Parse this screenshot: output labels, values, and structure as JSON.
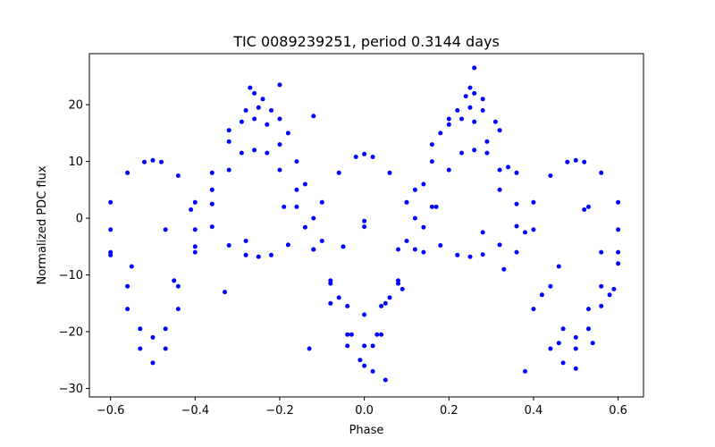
{
  "chart_data": {
    "type": "scatter",
    "title": "TIC 0089239251, period 0.3144 days",
    "xlabel": "Phase",
    "ylabel": "Normalized PDC flux",
    "xlim": [
      -0.65,
      0.66
    ],
    "ylim": [
      -31.5,
      29.0
    ],
    "x_ticks": [
      -0.6,
      -0.4,
      -0.2,
      0.0,
      0.2,
      0.4,
      0.6
    ],
    "x_tick_labels": [
      "−0.6",
      "−0.4",
      "−0.2",
      "0.0",
      "0.2",
      "0.4",
      "0.6"
    ],
    "y_ticks": [
      -30,
      -20,
      -10,
      0,
      10,
      20
    ],
    "y_tick_labels": [
      "−30",
      "−20",
      "−10",
      "0",
      "10",
      "20"
    ],
    "grid": false,
    "marker_color": "#0000ff",
    "series": [
      {
        "x": [
          -0.6,
          -0.56,
          -0.52,
          -0.5,
          -0.48,
          -0.44,
          -0.4,
          -0.36,
          -0.32,
          -0.28,
          -0.25,
          -0.22,
          -0.18,
          -0.14,
          -0.1,
          -0.06,
          -0.02,
          0.0,
          0.02,
          0.06,
          0.1,
          0.14,
          0.18,
          0.22,
          0.25,
          0.28,
          0.32,
          0.36,
          0.4,
          0.44,
          0.48,
          0.5,
          0.52,
          0.56,
          0.6
        ],
        "y": [
          2.8,
          8.0,
          9.9,
          10.2,
          9.9,
          7.5,
          2.8,
          -1.5,
          -4.8,
          -6.5,
          -6.8,
          -6.5,
          -4.7,
          -1.6,
          2.8,
          8.0,
          10.8,
          11.3,
          10.8,
          8.0,
          2.8,
          -1.6,
          -4.8,
          -6.5,
          -6.8,
          -6.4,
          -4.7,
          -1.4,
          2.8,
          7.5,
          9.9,
          10.2,
          9.9,
          8.0,
          2.8
        ]
      },
      {
        "x": [
          -0.6,
          -0.56,
          -0.53,
          -0.5,
          -0.47,
          -0.44,
          -0.4,
          -0.36,
          -0.32,
          -0.28,
          -0.25,
          -0.22,
          -0.18,
          -0.14,
          -0.1,
          -0.06,
          -0.03,
          0.0,
          0.03,
          0.06,
          0.1,
          0.14,
          0.18,
          0.22,
          0.25,
          0.28,
          0.32,
          0.36,
          0.4,
          0.44,
          0.47,
          0.5,
          0.53,
          0.56,
          0.6
        ],
        "y": [
          -2.0,
          -12.0,
          -19.5,
          -21.0,
          -19.5,
          -12.0,
          -2.0,
          8.0,
          15.5,
          19.0,
          19.5,
          19.0,
          15.0,
          6.0,
          -4.0,
          -14.0,
          -20.5,
          -22.5,
          -20.5,
          -14.0,
          -4.0,
          6.0,
          15.0,
          19.0,
          19.5,
          19.0,
          15.5,
          8.0,
          -2.0,
          -12.0,
          -19.5,
          -21.0,
          -19.5,
          -12.0,
          -2.0
        ]
      },
      {
        "x": [
          -0.6,
          -0.56,
          -0.53,
          -0.5,
          -0.47,
          -0.44,
          -0.4,
          -0.36,
          -0.32,
          -0.29,
          -0.26,
          -0.23,
          -0.2,
          -0.16,
          -0.12,
          -0.08,
          -0.04,
          -0.01,
          0.02,
          0.05,
          0.08,
          0.12,
          0.16,
          0.2,
          0.23,
          0.26,
          0.29,
          0.32,
          0.36,
          0.4,
          0.44,
          0.47,
          0.5,
          0.53,
          0.56,
          0.6
        ],
        "y": [
          -6.0,
          -16.0,
          -23.0,
          -25.5,
          -23.0,
          -16.0,
          -6.0,
          5.0,
          13.5,
          17.0,
          17.5,
          16.5,
          13.0,
          5.0,
          -5.5,
          -15.0,
          -22.5,
          -25.0,
          -22.5,
          -15.0,
          -5.5,
          5.0,
          13.0,
          16.5,
          17.5,
          17.0,
          13.5,
          5.0,
          -6.0,
          -16.0,
          -23.0,
          -25.5,
          -23.0,
          -16.0,
          -6.0,
          -6.0
        ]
      },
      {
        "x": [
          -0.45,
          -0.4,
          -0.36,
          -0.32,
          -0.29,
          -0.26,
          -0.23,
          -0.2,
          -0.16,
          -0.12,
          -0.08,
          -0.04,
          0.0,
          0.04,
          0.08,
          0.12,
          0.16,
          0.2,
          0.23,
          0.26,
          0.29,
          0.32,
          0.36
        ],
        "y": [
          -11.0,
          -5.0,
          2.5,
          8.5,
          11.5,
          12.0,
          11.5,
          8.5,
          2.0,
          -5.5,
          -11.5,
          -15.5,
          -17.0,
          -15.5,
          -11.5,
          -5.5,
          2.0,
          8.5,
          11.5,
          12.0,
          11.5,
          8.5,
          2.5
        ]
      },
      {
        "x": [
          -0.26,
          -0.24,
          -0.2,
          -0.16,
          -0.12,
          -0.08,
          -0.04,
          0.0,
          0.04,
          0.08,
          0.12,
          0.16,
          0.2,
          0.24,
          0.26,
          0.28,
          0.31,
          0.34,
          0.38,
          0.42,
          0.46,
          0.5,
          0.54,
          0.58,
          0.6
        ],
        "y": [
          22.0,
          21.0,
          17.5,
          10.0,
          0.0,
          -11.0,
          -20.5,
          -26.0,
          -20.5,
          -11.0,
          0.0,
          10.0,
          17.5,
          21.5,
          22.0,
          21.0,
          17.0,
          9.0,
          -2.5,
          -13.5,
          -22.0,
          -26.5,
          -22.0,
          -13.5,
          -8.0
        ]
      },
      {
        "x": [
          -0.6,
          -0.55,
          -0.47,
          -0.41,
          -0.33,
          -0.28,
          -0.27,
          -0.2,
          -0.19,
          -0.13,
          -0.12,
          -0.05,
          0.0,
          0.0,
          0.02,
          0.05,
          0.09,
          0.14,
          0.17,
          0.25,
          0.26,
          0.28,
          0.33,
          0.38,
          0.46,
          0.52,
          0.53,
          0.56,
          0.59
        ],
        "y": [
          -6.5,
          -8.5,
          -2.0,
          1.5,
          -13.0,
          -4.0,
          23.0,
          23.5,
          2.0,
          -23.0,
          18.0,
          -5.0,
          -0.5,
          -1.5,
          -27.0,
          -28.5,
          -12.5,
          -6.0,
          2.0,
          23.0,
          26.5,
          -2.5,
          -9.0,
          -27.0,
          -8.5,
          1.5,
          2.0,
          -15.5,
          -12.5
        ]
      }
    ]
  }
}
